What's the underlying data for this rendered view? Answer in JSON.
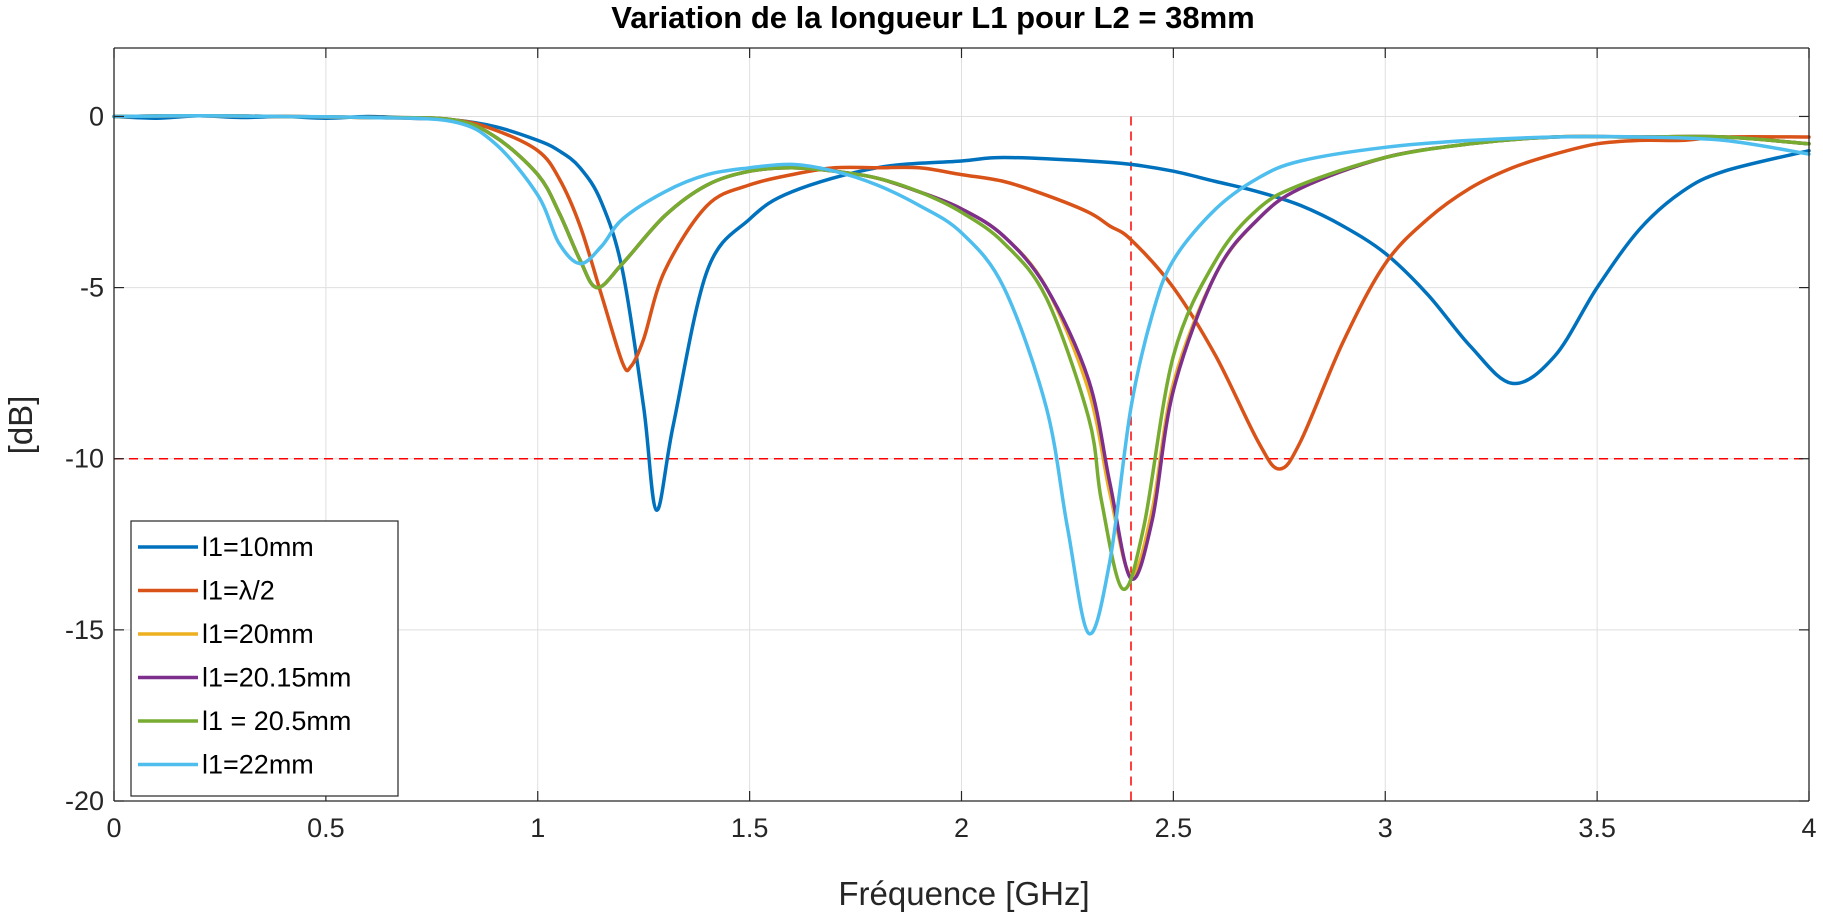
{
  "chart_data": {
    "type": "line",
    "title": "Variation de la longueur L1 pour L2 = 38mm",
    "xlabel": "Fréquence [GHz]",
    "ylabel": "[dB]",
    "xlim": [
      0,
      4
    ],
    "ylim": [
      -20,
      2
    ],
    "xticks": [
      0,
      0.5,
      1,
      1.5,
      2,
      2.5,
      3,
      3.5,
      4
    ],
    "xtick_labels": [
      "0",
      "0.5",
      "1",
      "1.5",
      "2",
      "2.5",
      "3",
      "3.5",
      "4"
    ],
    "yticks": [
      -20,
      -15,
      -10,
      -5,
      0
    ],
    "ytick_labels": [
      "-20",
      "-15",
      "-10",
      "-5",
      "0"
    ],
    "grid": true,
    "legend_position": "bottom-left",
    "reference_lines": [
      {
        "orientation": "horizontal",
        "value": -10,
        "color": "#ff0000",
        "style": "dashed"
      },
      {
        "orientation": "vertical",
        "value": 2.4,
        "color": "#ff0000",
        "style": "dashed"
      }
    ],
    "series": [
      {
        "name": "l1=10mm",
        "color": "#0072BD",
        "x": [
          0,
          0.1,
          0.2,
          0.3,
          0.4,
          0.5,
          0.6,
          0.7,
          0.8,
          0.9,
          1.0,
          1.05,
          1.1,
          1.15,
          1.2,
          1.25,
          1.28,
          1.32,
          1.4,
          1.5,
          1.6,
          1.8,
          2.0,
          2.1,
          2.3,
          2.4,
          2.5,
          2.6,
          2.7,
          2.8,
          2.9,
          3.0,
          3.1,
          3.2,
          3.3,
          3.4,
          3.5,
          3.6,
          3.7,
          3.8,
          4.0
        ],
        "y": [
          0,
          -0.05,
          0.02,
          -0.03,
          0,
          -0.05,
          0,
          -0.05,
          -0.1,
          -0.3,
          -0.7,
          -1.0,
          -1.5,
          -2.5,
          -4.5,
          -8.5,
          -11.5,
          -9.0,
          -4.5,
          -3.0,
          -2.2,
          -1.5,
          -1.3,
          -1.2,
          -1.3,
          -1.4,
          -1.6,
          -1.9,
          -2.2,
          -2.6,
          -3.2,
          -4.0,
          -5.2,
          -6.7,
          -7.8,
          -7.0,
          -5.0,
          -3.3,
          -2.2,
          -1.6,
          -1.0
        ]
      },
      {
        "name": "l1=λ/2",
        "color": "#D95319",
        "x": [
          0,
          0.2,
          0.4,
          0.6,
          0.8,
          0.9,
          1.0,
          1.05,
          1.1,
          1.15,
          1.2,
          1.22,
          1.25,
          1.3,
          1.4,
          1.5,
          1.6,
          1.7,
          1.8,
          1.9,
          2.0,
          2.1,
          2.2,
          2.3,
          2.35,
          2.4,
          2.5,
          2.6,
          2.7,
          2.75,
          2.8,
          2.9,
          3.0,
          3.1,
          3.2,
          3.3,
          3.4,
          3.5,
          3.6,
          3.7,
          3.8,
          4.0
        ],
        "y": [
          0,
          0.02,
          0,
          -0.03,
          -0.1,
          -0.4,
          -1.0,
          -1.8,
          -3.2,
          -5.2,
          -7.2,
          -7.3,
          -6.5,
          -4.5,
          -2.6,
          -2.0,
          -1.7,
          -1.5,
          -1.5,
          -1.5,
          -1.7,
          -1.9,
          -2.3,
          -2.8,
          -3.2,
          -3.6,
          -5.0,
          -7.0,
          -9.5,
          -10.3,
          -9.5,
          -6.6,
          -4.3,
          -3.0,
          -2.1,
          -1.5,
          -1.1,
          -0.8,
          -0.7,
          -0.7,
          -0.6,
          -0.6
        ]
      },
      {
        "name": "l1=20mm",
        "color": "#EDB120",
        "x": [
          0,
          0.2,
          0.4,
          0.6,
          0.8,
          0.9,
          1.0,
          1.05,
          1.1,
          1.14,
          1.2,
          1.3,
          1.4,
          1.5,
          1.6,
          1.7,
          1.8,
          1.9,
          2.0,
          2.1,
          2.2,
          2.3,
          2.35,
          2.4,
          2.45,
          2.5,
          2.6,
          2.7,
          2.8,
          3.0,
          3.2,
          3.4,
          3.6,
          3.8,
          4.0
        ],
        "y": [
          0,
          0.02,
          0,
          -0.03,
          -0.1,
          -0.6,
          -1.7,
          -2.8,
          -4.2,
          -5.0,
          -4.3,
          -2.9,
          -2.0,
          -1.6,
          -1.5,
          -1.6,
          -1.8,
          -2.2,
          -2.7,
          -3.5,
          -5.0,
          -8.0,
          -11.0,
          -13.4,
          -11.5,
          -7.8,
          -4.6,
          -3.0,
          -2.1,
          -1.2,
          -0.8,
          -0.6,
          -0.6,
          -0.6,
          -0.8
        ]
      },
      {
        "name": "l1=20.15mm",
        "color": "#7E2F8E",
        "x": [
          0,
          0.2,
          0.4,
          0.6,
          0.8,
          0.9,
          1.0,
          1.05,
          1.1,
          1.14,
          1.2,
          1.3,
          1.4,
          1.5,
          1.6,
          1.7,
          1.8,
          1.9,
          2.0,
          2.1,
          2.2,
          2.3,
          2.35,
          2.4,
          2.45,
          2.5,
          2.6,
          2.7,
          2.8,
          3.0,
          3.2,
          3.4,
          3.6,
          3.8,
          4.0
        ],
        "y": [
          0,
          0.02,
          0,
          -0.03,
          -0.1,
          -0.6,
          -1.7,
          -2.8,
          -4.2,
          -5.0,
          -4.3,
          -2.9,
          -2.0,
          -1.6,
          -1.5,
          -1.6,
          -1.8,
          -2.2,
          -2.7,
          -3.5,
          -5.0,
          -7.7,
          -10.7,
          -13.5,
          -11.8,
          -8.0,
          -4.6,
          -3.0,
          -2.1,
          -1.2,
          -0.8,
          -0.6,
          -0.6,
          -0.6,
          -0.8
        ]
      },
      {
        "name": "l1 = 20.5mm",
        "color": "#77AC30",
        "x": [
          0,
          0.2,
          0.4,
          0.6,
          0.8,
          0.9,
          1.0,
          1.05,
          1.1,
          1.14,
          1.2,
          1.3,
          1.4,
          1.5,
          1.6,
          1.7,
          1.8,
          1.9,
          2.0,
          2.1,
          2.2,
          2.3,
          2.33,
          2.38,
          2.43,
          2.5,
          2.6,
          2.7,
          2.8,
          3.0,
          3.2,
          3.4,
          3.6,
          3.8,
          4.0
        ],
        "y": [
          0,
          0.02,
          0,
          -0.03,
          -0.1,
          -0.6,
          -1.7,
          -2.8,
          -4.2,
          -5.0,
          -4.3,
          -2.9,
          -2.0,
          -1.6,
          -1.5,
          -1.6,
          -1.8,
          -2.2,
          -2.8,
          -3.7,
          -5.3,
          -8.8,
          -11.2,
          -13.8,
          -12.0,
          -7.0,
          -4.2,
          -2.7,
          -2.0,
          -1.2,
          -0.8,
          -0.6,
          -0.6,
          -0.6,
          -0.8
        ]
      },
      {
        "name": "l1=22mm",
        "color": "#4DBEEE",
        "x": [
          0,
          0.2,
          0.4,
          0.6,
          0.8,
          0.9,
          1.0,
          1.05,
          1.1,
          1.15,
          1.2,
          1.3,
          1.4,
          1.5,
          1.6,
          1.7,
          1.8,
          1.9,
          2.0,
          2.1,
          2.2,
          2.25,
          2.3,
          2.35,
          2.4,
          2.45,
          2.5,
          2.6,
          2.7,
          2.8,
          3.0,
          3.2,
          3.4,
          3.6,
          3.8,
          4.0
        ],
        "y": [
          0,
          0.02,
          0,
          -0.03,
          -0.15,
          -0.8,
          -2.3,
          -3.7,
          -4.3,
          -3.8,
          -3.0,
          -2.2,
          -1.7,
          -1.5,
          -1.4,
          -1.6,
          -2.0,
          -2.6,
          -3.4,
          -5.0,
          -8.5,
          -12.0,
          -15.1,
          -13.0,
          -8.5,
          -5.8,
          -4.2,
          -2.7,
          -1.8,
          -1.3,
          -0.9,
          -0.7,
          -0.6,
          -0.6,
          -0.7,
          -1.1
        ]
      }
    ]
  }
}
